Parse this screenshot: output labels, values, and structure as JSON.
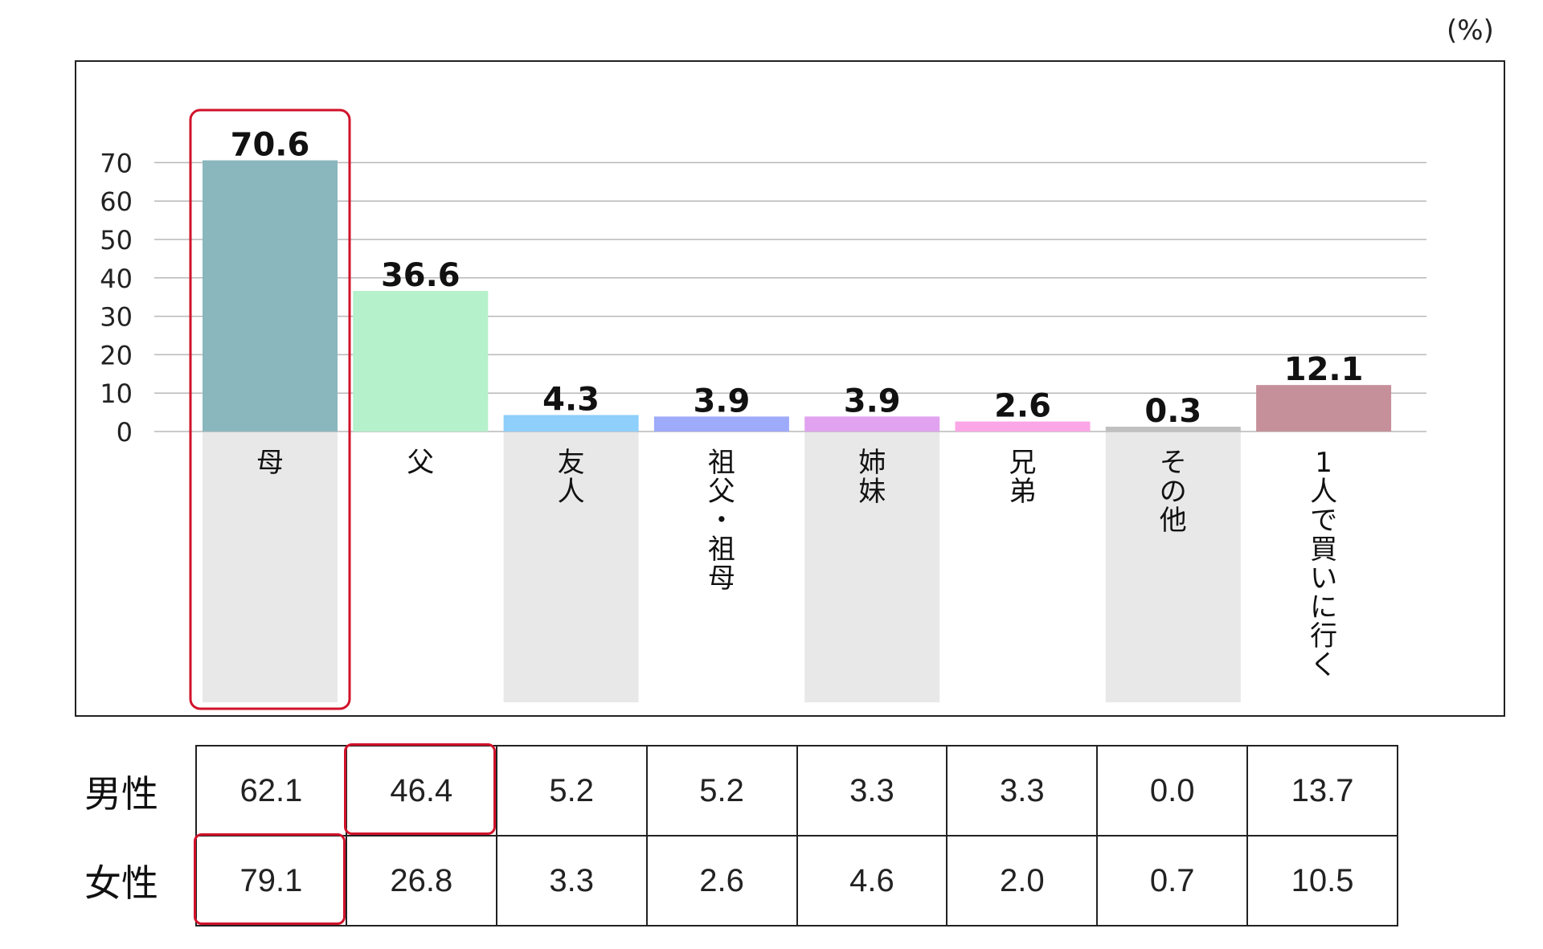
{
  "unit_label": "(%)",
  "chart_data": {
    "type": "bar",
    "categories": [
      "母",
      "父",
      "友人",
      "祖父・祖母",
      "姉妹",
      "兄弟",
      "その他",
      "1人で買いに行く"
    ],
    "values": [
      70.6,
      36.6,
      4.3,
      3.9,
      3.9,
      2.6,
      0.3,
      12.1
    ],
    "value_labels": [
      "70.6",
      "36.6",
      "4.3",
      "3.9",
      "3.9",
      "2.6",
      "0.3",
      "12.1"
    ],
    "bar_colors": [
      "#8ab7be",
      "#b5f1cb",
      "#8ecffb",
      "#9eaafa",
      "#e1a2f0",
      "#fba6e6",
      "#c0c0c0",
      "#c6909b"
    ],
    "ylim": [
      0,
      75
    ],
    "yticks": [
      "0",
      "10",
      "20",
      "30",
      "40",
      "50",
      "60",
      "70"
    ],
    "ytick_values": [
      0,
      10,
      20,
      30,
      40,
      50,
      60,
      70
    ],
    "grid": true,
    "highlight_category": "母"
  },
  "table": {
    "rows": [
      {
        "label": "男性",
        "values": [
          "62.1",
          "46.4",
          "5.2",
          "5.2",
          "3.3",
          "3.3",
          "0.0",
          "13.7"
        ],
        "highlight_index": 1
      },
      {
        "label": "女性",
        "values": [
          "79.1",
          "26.8",
          "3.3",
          "2.6",
          "4.6",
          "2.0",
          "0.7",
          "10.5"
        ],
        "highlight_index": 0
      }
    ]
  },
  "colors": {
    "highlight": "#d1122a",
    "label_band": "#e8e8e8",
    "grid": "#b8b8b8"
  }
}
